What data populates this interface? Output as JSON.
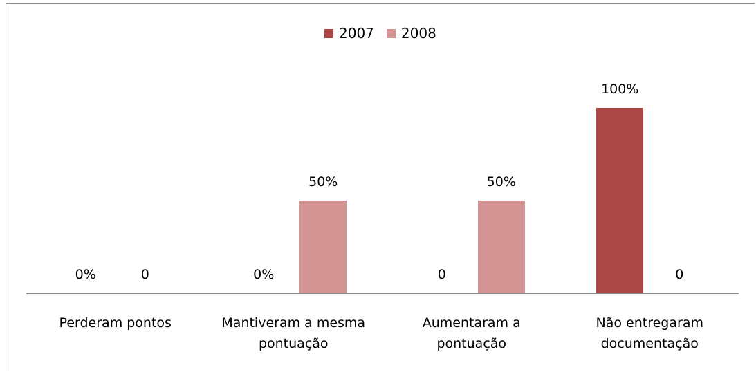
{
  "chart_data": {
    "type": "bar",
    "categories": [
      "Perderam pontos",
      "Mantiveram a mesma pontuação",
      "Aumentaram a pontuação",
      "Não entregaram documentação"
    ],
    "series": [
      {
        "name": "2007",
        "color": "#ab4745",
        "values": [
          0,
          0,
          0,
          100
        ],
        "value_labels": [
          "0%",
          "0%",
          "0",
          "100%"
        ]
      },
      {
        "name": "2008",
        "color": "#d39494",
        "values": [
          0,
          50,
          50,
          0
        ],
        "value_labels": [
          "0",
          "50%",
          "50%",
          "0"
        ]
      }
    ],
    "legend": "top"
  }
}
